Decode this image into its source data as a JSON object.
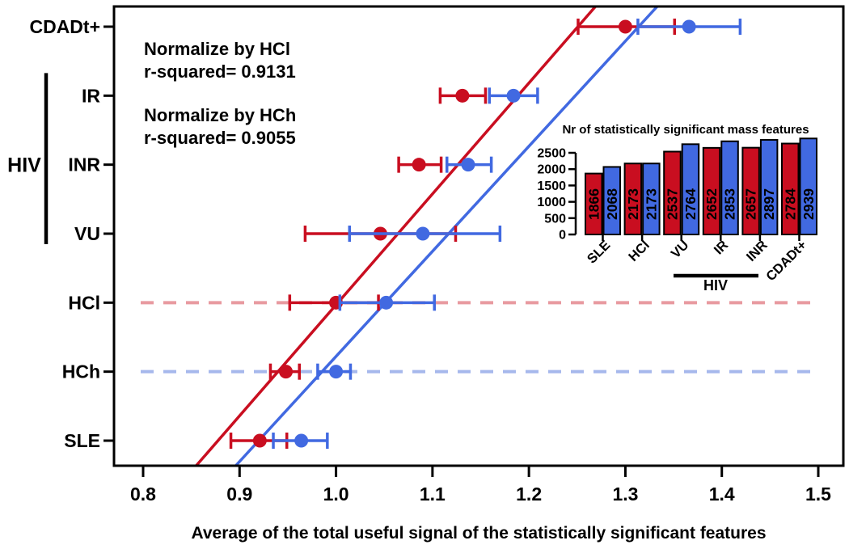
{
  "styles": {
    "red": "#C90E20",
    "blue": "#4169E1",
    "red_dash": "#E89AA0",
    "blue_dash": "#A6B8EC",
    "frame": "#000000",
    "bar_value_label": "#FFFFFF"
  },
  "chart_data": [
    {
      "type": "scatter",
      "orientation": "horizontal-dotplot-with-error-bars",
      "xlabel": "Average of the total useful signal of the statistically significant features",
      "xticks": [
        0.8,
        0.9,
        1.0,
        1.1,
        1.2,
        1.3,
        1.4,
        1.5
      ],
      "xtick_labels": [
        "0.8",
        "0.9",
        "1.0",
        "1.1",
        "1.2",
        "1.3",
        "1.4",
        "1.5"
      ],
      "xlim": [
        0.77,
        1.526
      ],
      "grid": false,
      "categories": [
        "CDADt+",
        "IR",
        "INR",
        "VU",
        "HCl",
        "HCh",
        "SLE"
      ],
      "category_group": {
        "label": "HIV",
        "members": [
          "IR",
          "INR",
          "VU"
        ]
      },
      "legend_position": "top-left-inside",
      "series": [
        {
          "name": "Normalize by HCl",
          "r_squared": 0.9131,
          "r_squared_label": "r-squared= 0.9131",
          "color_key": "red",
          "values": [
            1.3,
            1.131,
            1.086,
            1.046,
            1.0,
            0.948,
            0.921
          ],
          "ci_low": [
            1.251,
            1.108,
            1.065,
            0.968,
            0.952,
            0.932,
            0.891
          ],
          "ci_high": [
            1.351,
            1.155,
            1.109,
            1.124,
            1.044,
            0.962,
            0.949
          ],
          "trend_line": {
            "x_at_plot_bottom": 0.855,
            "x_at_plot_top": 1.269
          },
          "reference_category": "HCl"
        },
        {
          "name": "Normalize by HCh",
          "r_squared": 0.9055,
          "r_squared_label": "r-squared= 0.9055",
          "color_key": "blue",
          "values": [
            1.366,
            1.184,
            1.137,
            1.09,
            1.052,
            1.0,
            0.964
          ],
          "ci_low": [
            1.313,
            1.159,
            1.115,
            1.014,
            1.004,
            0.981,
            0.935
          ],
          "ci_high": [
            1.419,
            1.209,
            1.161,
            1.17,
            1.102,
            1.015,
            0.991
          ],
          "trend_line": {
            "x_at_plot_bottom": 0.896,
            "x_at_plot_top": 1.333
          },
          "reference_category": "HCh"
        }
      ]
    },
    {
      "type": "bar",
      "title": "Nr of statistically significant mass features",
      "categories": [
        "SLE",
        "HCl",
        "VU",
        "IR",
        "INR",
        "CDADt+"
      ],
      "category_group": {
        "label": "HIV",
        "members": [
          "VU",
          "IR",
          "INR"
        ]
      },
      "ylim": [
        0,
        2500
      ],
      "yticks": [
        0,
        500,
        1000,
        1500,
        2000,
        2500
      ],
      "series": [
        {
          "name": "Normalize by HCl",
          "color_key": "red",
          "values": [
            1866,
            2173,
            2537,
            2652,
            2657,
            2784
          ]
        },
        {
          "name": "Normalize by HCh",
          "color_key": "blue",
          "values": [
            2068,
            2173,
            2764,
            2853,
            2897,
            2939
          ]
        }
      ]
    }
  ]
}
